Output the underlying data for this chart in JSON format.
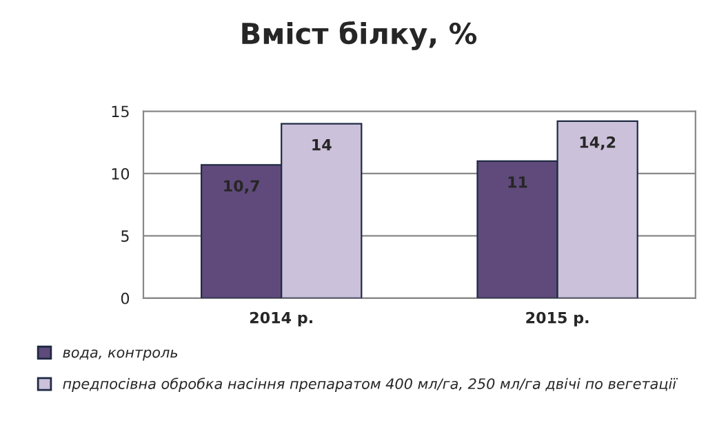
{
  "chart_data": {
    "type": "bar",
    "title": "Вміст білку, %",
    "categories": [
      "2014 р.",
      "2015 р."
    ],
    "series": [
      {
        "name": "вода, контроль",
        "color": "#604a7b",
        "values": [
          10.7,
          11
        ],
        "value_labels": [
          "10,7",
          "11"
        ]
      },
      {
        "name": "предпосівна обробка насіння препаратом 400 мл/га, 250 мл/га двічі по вегетації",
        "color": "#ccc1da",
        "values": [
          14,
          14.2
        ],
        "value_labels": [
          "14",
          "14,2"
        ]
      }
    ],
    "ylim": [
      0,
      15
    ],
    "yticks": [
      0,
      5,
      10,
      15
    ],
    "grid": "y",
    "legend": "bottom"
  }
}
